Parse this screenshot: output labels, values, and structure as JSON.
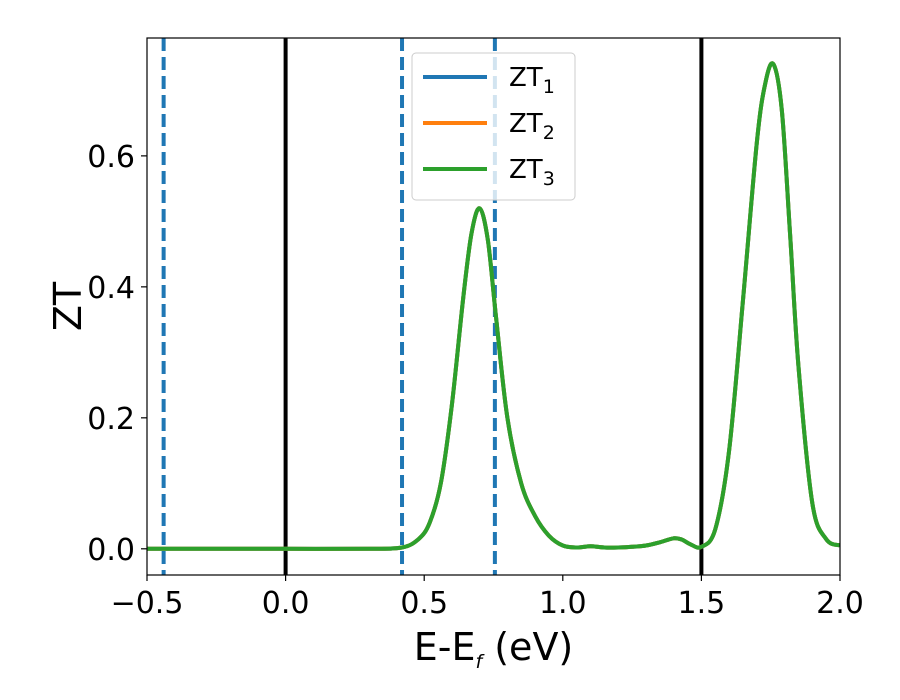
{
  "chart_data": {
    "type": "line",
    "xlabel": "E-E",
    "xlabel_sub": "f",
    "xlabel_unit": " (eV)",
    "ylabel": "ZT",
    "xlim": [
      -0.5,
      2.0
    ],
    "ylim": [
      -0.04,
      0.78
    ],
    "x_ticks": [
      -0.5,
      0.0,
      0.5,
      1.0,
      1.5,
      2.0
    ],
    "x_tick_labels": [
      "−0.5",
      "0.0",
      "0.5",
      "1.0",
      "1.5",
      "2.0"
    ],
    "y_ticks": [
      0.0,
      0.2,
      0.4,
      0.6
    ],
    "y_tick_labels": [
      "0.0",
      "0.2",
      "0.4",
      "0.6"
    ],
    "grid": false,
    "legend_position": "top-center",
    "vertical_lines": [
      {
        "x": -0.44,
        "style": "dashed",
        "color": "#1f77b4"
      },
      {
        "x": 0.0,
        "style": "solid",
        "color": "#000000"
      },
      {
        "x": 0.42,
        "style": "dashed",
        "color": "#1f77b4"
      },
      {
        "x": 0.755,
        "style": "dashed",
        "color": "#1f77b4"
      },
      {
        "x": 1.5,
        "style": "solid",
        "color": "#000000"
      }
    ],
    "series": [
      {
        "name": "ZT",
        "name_sub": "1",
        "color": "#1f77b4",
        "x": [
          -0.5,
          -0.3,
          0.0,
          0.3,
          0.42,
          0.48,
          0.52,
          0.56,
          0.6,
          0.64,
          0.67,
          0.7,
          0.73,
          0.76,
          0.8,
          0.85,
          0.9,
          0.95,
          1.0,
          1.05,
          1.1,
          1.15,
          1.2,
          1.25,
          1.3,
          1.35,
          1.4,
          1.43,
          1.46,
          1.5,
          1.55,
          1.6,
          1.65,
          1.7,
          1.73,
          1.76,
          1.79,
          1.82,
          1.85,
          1.9,
          1.95,
          2.0
        ],
        "y": [
          0.0,
          0.0,
          0.0,
          0.0,
          0.002,
          0.015,
          0.04,
          0.1,
          0.22,
          0.38,
          0.48,
          0.52,
          0.47,
          0.35,
          0.2,
          0.1,
          0.05,
          0.02,
          0.005,
          0.002,
          0.004,
          0.002,
          0.002,
          0.003,
          0.005,
          0.01,
          0.016,
          0.014,
          0.007,
          0.003,
          0.03,
          0.15,
          0.38,
          0.62,
          0.71,
          0.74,
          0.67,
          0.48,
          0.28,
          0.07,
          0.015,
          0.005
        ]
      },
      {
        "name": "ZT",
        "name_sub": "2",
        "color": "#ff7f0e",
        "x": [
          -0.5,
          -0.3,
          0.0,
          0.3,
          0.42,
          0.48,
          0.52,
          0.56,
          0.6,
          0.64,
          0.67,
          0.7,
          0.73,
          0.76,
          0.8,
          0.85,
          0.9,
          0.95,
          1.0,
          1.05,
          1.1,
          1.15,
          1.2,
          1.25,
          1.3,
          1.35,
          1.4,
          1.43,
          1.46,
          1.5,
          1.55,
          1.6,
          1.65,
          1.7,
          1.73,
          1.76,
          1.79,
          1.82,
          1.85,
          1.9,
          1.95,
          2.0
        ],
        "y": [
          0.0,
          0.0,
          0.0,
          0.0,
          0.002,
          0.015,
          0.04,
          0.1,
          0.22,
          0.38,
          0.48,
          0.52,
          0.47,
          0.35,
          0.2,
          0.1,
          0.05,
          0.02,
          0.005,
          0.002,
          0.004,
          0.002,
          0.002,
          0.003,
          0.005,
          0.01,
          0.016,
          0.014,
          0.007,
          0.003,
          0.03,
          0.15,
          0.38,
          0.62,
          0.71,
          0.74,
          0.67,
          0.48,
          0.28,
          0.07,
          0.015,
          0.005
        ]
      },
      {
        "name": "ZT",
        "name_sub": "3",
        "color": "#2ca02c",
        "x": [
          -0.5,
          -0.3,
          0.0,
          0.3,
          0.42,
          0.48,
          0.52,
          0.56,
          0.6,
          0.64,
          0.67,
          0.7,
          0.73,
          0.76,
          0.8,
          0.85,
          0.9,
          0.95,
          1.0,
          1.05,
          1.1,
          1.15,
          1.2,
          1.25,
          1.3,
          1.35,
          1.4,
          1.43,
          1.46,
          1.5,
          1.55,
          1.6,
          1.65,
          1.7,
          1.73,
          1.76,
          1.79,
          1.82,
          1.85,
          1.9,
          1.95,
          2.0
        ],
        "y": [
          0.0,
          0.0,
          0.0,
          0.0,
          0.002,
          0.015,
          0.04,
          0.1,
          0.22,
          0.38,
          0.48,
          0.52,
          0.47,
          0.35,
          0.2,
          0.1,
          0.05,
          0.02,
          0.005,
          0.002,
          0.004,
          0.002,
          0.002,
          0.003,
          0.005,
          0.01,
          0.016,
          0.014,
          0.007,
          0.003,
          0.03,
          0.15,
          0.38,
          0.62,
          0.71,
          0.74,
          0.67,
          0.48,
          0.28,
          0.07,
          0.015,
          0.005
        ]
      }
    ]
  }
}
